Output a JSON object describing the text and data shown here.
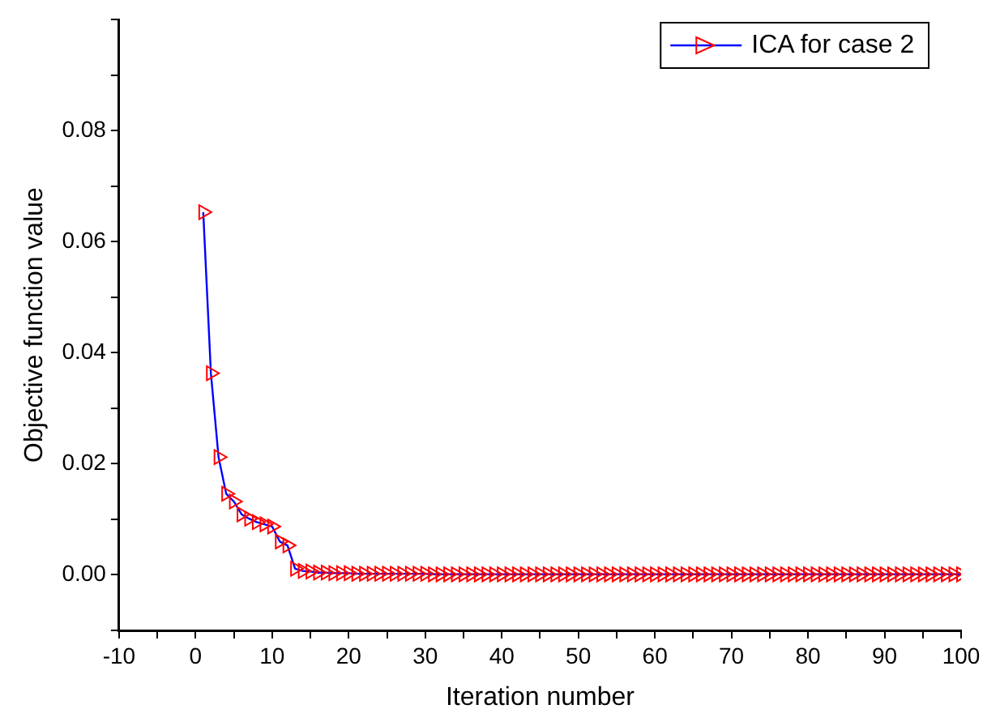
{
  "chart_data": {
    "type": "line",
    "xlabel": "Iteration number",
    "ylabel": "Objective function value",
    "xlim": [
      -10,
      100
    ],
    "xticks": [
      -10,
      {
        "value": -5,
        "label": null
      },
      0,
      {
        "value": 5,
        "label": null
      },
      10,
      {
        "value": 15,
        "label": null
      },
      20,
      {
        "value": 25,
        "label": null
      },
      30,
      {
        "value": 35,
        "label": null
      },
      40,
      {
        "value": 45,
        "label": null
      },
      50,
      {
        "value": 55,
        "label": null
      },
      60,
      {
        "value": 65,
        "label": null
      },
      70,
      {
        "value": 75,
        "label": null
      },
      80,
      {
        "value": 85,
        "label": null
      },
      90,
      {
        "value": 95,
        "label": null
      },
      100
    ],
    "ylim": [
      -0.01,
      0.1
    ],
    "yticks": [
      {
        "value": -0.01,
        "label": null
      },
      {
        "value": 0,
        "label": "0.00"
      },
      {
        "value": 0.01,
        "label": null
      },
      {
        "value": 0.02,
        "label": "0.02"
      },
      {
        "value": 0.03,
        "label": null
      },
      {
        "value": 0.04,
        "label": "0.04"
      },
      {
        "value": 0.05,
        "label": null
      },
      {
        "value": 0.06,
        "label": "0.06"
      },
      {
        "value": 0.07,
        "label": null
      },
      {
        "value": 0.08,
        "label": "0.08"
      },
      {
        "value": 0.09,
        "label": null
      },
      {
        "value": 0.1,
        "label": null
      }
    ],
    "grid": false,
    "legend": "top right",
    "marker": "triangle",
    "line_style": "solid",
    "x": [
      1,
      2,
      3,
      4,
      5,
      6,
      7,
      8,
      9,
      10,
      11,
      12,
      13,
      14,
      15,
      16,
      17,
      18,
      19,
      20,
      21,
      22,
      23,
      24,
      25,
      26,
      27,
      28,
      29,
      30,
      31,
      32,
      33,
      34,
      35,
      36,
      37,
      38,
      39,
      40,
      41,
      42,
      43,
      44,
      45,
      46,
      47,
      48,
      49,
      50,
      51,
      52,
      53,
      54,
      55,
      56,
      57,
      58,
      59,
      60,
      61,
      62,
      63,
      64,
      65,
      66,
      67,
      68,
      69,
      70,
      71,
      72,
      73,
      74,
      75,
      76,
      77,
      78,
      79,
      80,
      81,
      82,
      83,
      84,
      85,
      86,
      87,
      88,
      89,
      90,
      91,
      92,
      93,
      94,
      95,
      96,
      97,
      98,
      99,
      100
    ],
    "series": [
      {
        "name": "ICA for case 2",
        "color": "#0000ff",
        "colors": [
          "#ff0000",
          "#ff0000",
          "#ff0000",
          "#ff0000",
          "#ff0000",
          "#ff0000",
          "#ff0000",
          "#ff0000",
          "#ff0000",
          "#ff0000",
          "#ff0000",
          "#ff0000",
          "#ff0000",
          "#ff0000",
          "#ff0000",
          "#ff0000",
          "#ff0000",
          "#ff0000",
          "#ff0000",
          "#ff0000",
          "#ff0000",
          "#ff0000",
          "#ff0000",
          "#ff0000",
          "#ff0000",
          "#ff0000",
          "#ff0000",
          "#ff0000",
          "#ff0000",
          "#ff0000",
          "#ff0000",
          "#ff0000",
          "#ff0000",
          "#ff0000",
          "#ff0000",
          "#ff0000",
          "#ff0000",
          "#ff0000",
          "#ff0000",
          "#ff0000",
          "#ff0000",
          "#ff0000",
          "#ff0000",
          "#ff0000",
          "#ff0000",
          "#ff0000",
          "#ff0000",
          "#ff0000",
          "#ff0000",
          "#ff0000",
          "#ff0000",
          "#ff0000",
          "#ff0000",
          "#ff0000",
          "#ff0000",
          "#ff0000",
          "#ff0000",
          "#ff0000",
          "#ff0000",
          "#ff0000",
          "#ff0000",
          "#ff0000",
          "#ff0000",
          "#ff0000",
          "#ff0000",
          "#ff0000",
          "#ff0000",
          "#ff0000",
          "#ff0000",
          "#ff0000",
          "#ff0000",
          "#ff0000",
          "#ff0000",
          "#ff0000",
          "#ff0000",
          "#ff0000",
          "#ff0000",
          "#ff0000",
          "#ff0000",
          "#ff0000",
          "#ff0000",
          "#ff0000",
          "#ff0000",
          "#ff0000",
          "#ff0000",
          "#ff0000",
          "#ff0000",
          "#ff0000",
          "#ff0000",
          "#ff0000",
          "#ff0000",
          "#ff0000",
          "#ff0000",
          "#ff0000",
          "#ff0000",
          "#ff0000",
          "#ff0000",
          "#ff0000",
          "#ff0000",
          "#ff0000"
        ],
        "values": [
          0.0653,
          0.0363,
          0.0212,
          0.0146,
          0.0132,
          0.0109,
          0.0101,
          0.0095,
          0.0091,
          0.0087,
          0.006,
          0.0053,
          0.0011,
          0.0007,
          0.0006,
          0.0004,
          0.0004,
          0.0003,
          0.0003,
          0.0003,
          0.0002,
          0.0002,
          0.0002,
          0.0002,
          0.0002,
          0.0002,
          0.0002,
          0.0002,
          0.0002,
          0.0002,
          0.0001,
          0.0001,
          0.0001,
          0.0001,
          0.0001,
          0.0001,
          0.0001,
          0.0001,
          0.0001,
          0.0001,
          0.0001,
          0.0001,
          0.0001,
          0.0001,
          0.0001,
          0.0001,
          0.0001,
          0.0001,
          0.0001,
          0.0001,
          0.0001,
          0.0001,
          0.0001,
          0.0001,
          0.0001,
          0.0001,
          0.0001,
          0.0001,
          0.0001,
          0.0001,
          0.0001,
          0.0001,
          0.0001,
          0.0001,
          0.0001,
          0.0001,
          0.0001,
          0.0001,
          0.0001,
          0.0001,
          0.0001,
          0.0001,
          0.0001,
          0.0001,
          0.0001,
          0.0001,
          0.0001,
          0.0001,
          0.0001,
          0.0001,
          0.0001,
          0.0001,
          0.0001,
          0.0001,
          0.0001,
          0.0001,
          0.0001,
          0.0001,
          0.0001,
          0.0001,
          0.0001,
          0.0001,
          0.0001,
          0.0001,
          0.0001,
          0.0001,
          0.0001,
          0.0001,
          0.0001,
          0.0001
        ]
      }
    ]
  }
}
